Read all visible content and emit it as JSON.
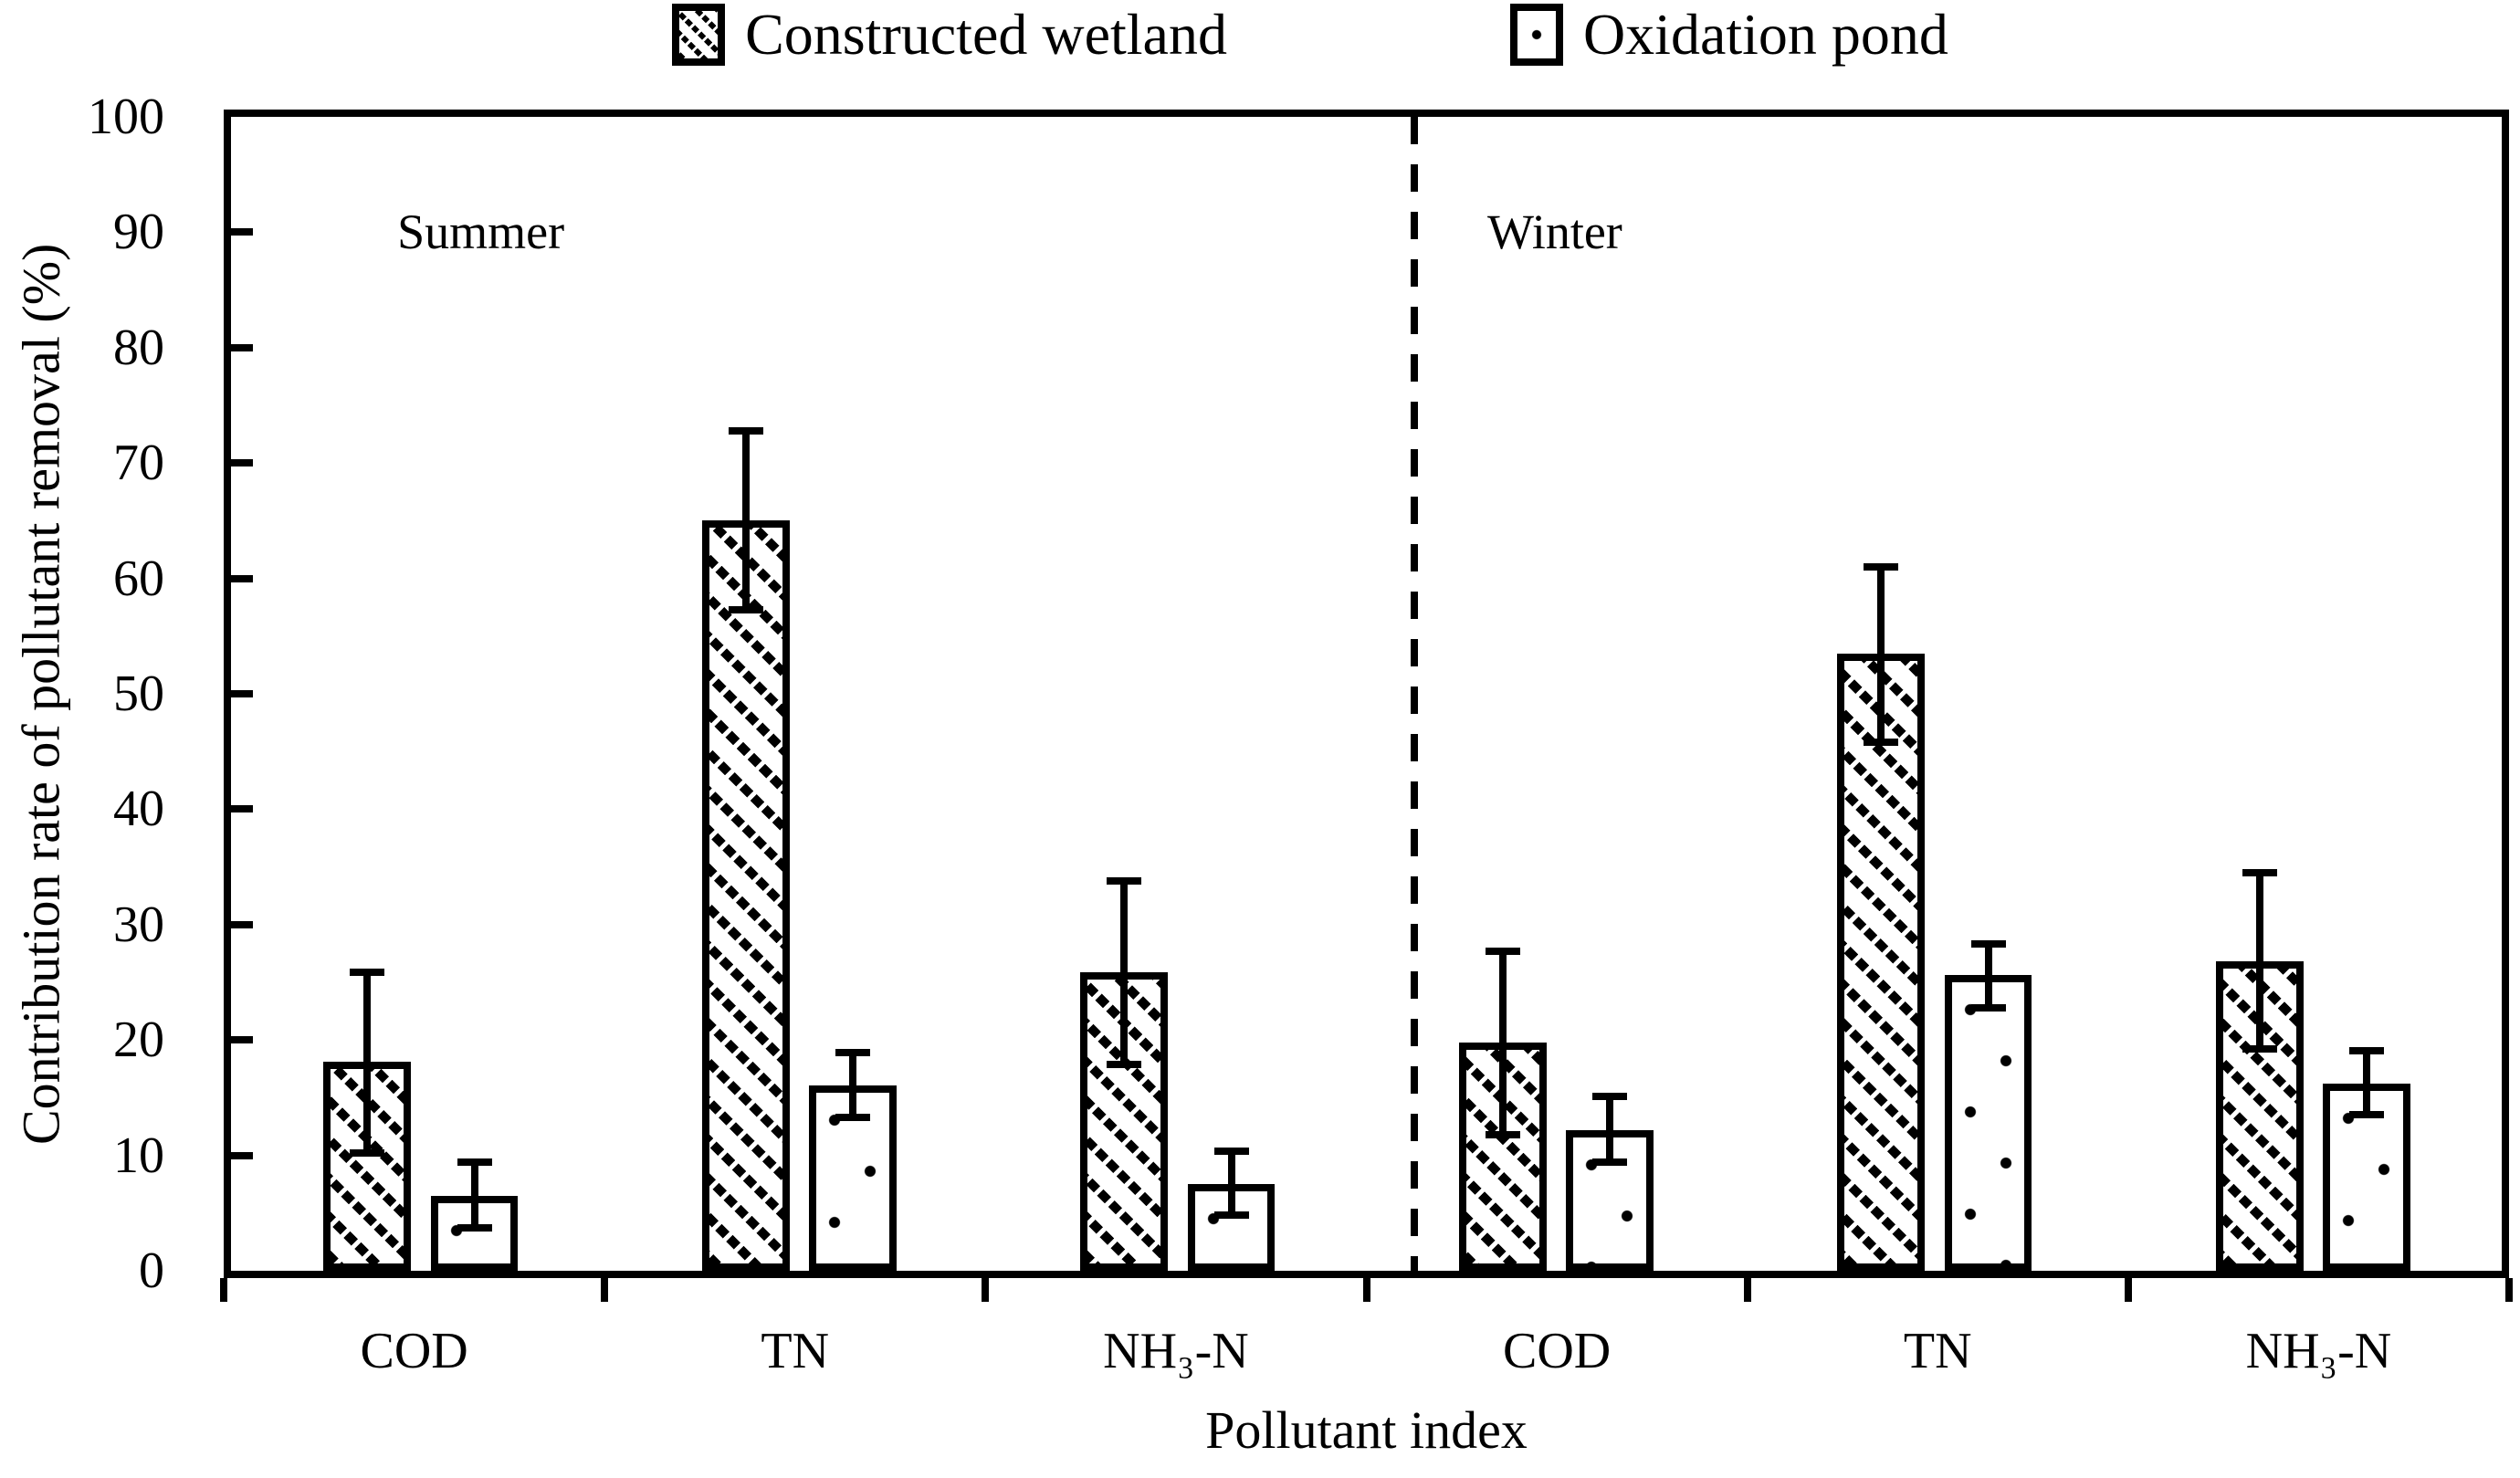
{
  "legend": {
    "items": [
      {
        "label": "Constructed wetland",
        "pattern": "diagonal-hatch"
      },
      {
        "label": "Oxidation pond",
        "pattern": "dots"
      }
    ]
  },
  "annotations": {
    "left_section": "Summer",
    "right_section": "Winter"
  },
  "chart_data": {
    "type": "bar",
    "title": "",
    "xlabel": "Pollutant index",
    "ylabel": "Contribution rate of pollutant removal (%)",
    "ylim": [
      0,
      100
    ],
    "yticks": [
      0,
      10,
      20,
      30,
      40,
      50,
      60,
      70,
      80,
      90,
      100
    ],
    "grid": false,
    "legend_position": "top",
    "sections": [
      {
        "label": "Summer",
        "categories": [
          "COD",
          "TN",
          "NH₃-N"
        ]
      },
      {
        "label": "Winter",
        "categories": [
          "COD",
          "TN",
          "NH₃-N"
        ]
      }
    ],
    "categories": [
      "COD",
      "TN",
      "NH₃-N",
      "COD",
      "TN",
      "NH₃-N"
    ],
    "series": [
      {
        "name": "Constructed wetland",
        "pattern": "diagonal-hatch",
        "values": [
          18.1,
          65.0,
          25.9,
          19.8,
          53.5,
          26.8
        ],
        "err_low": [
          10.2,
          57.3,
          17.9,
          11.8,
          45.8,
          19.2
        ],
        "err_high": [
          25.9,
          72.8,
          33.8,
          27.7,
          61.0,
          34.5
        ]
      },
      {
        "name": "Oxidation pond",
        "pattern": "dots",
        "values": [
          6.5,
          16.1,
          7.5,
          12.2,
          25.6,
          16.2
        ],
        "err_low": [
          3.7,
          13.3,
          4.8,
          9.4,
          22.8,
          13.5
        ],
        "err_high": [
          9.4,
          18.9,
          10.4,
          15.1,
          28.3,
          19.1
        ]
      }
    ],
    "divider_x_fraction": 0.521,
    "section_label_positions": [
      {
        "x_fraction": 0.11,
        "y_fraction": 0.1
      },
      {
        "x_fraction": 0.583,
        "y_fraction": 0.1
      }
    ]
  }
}
